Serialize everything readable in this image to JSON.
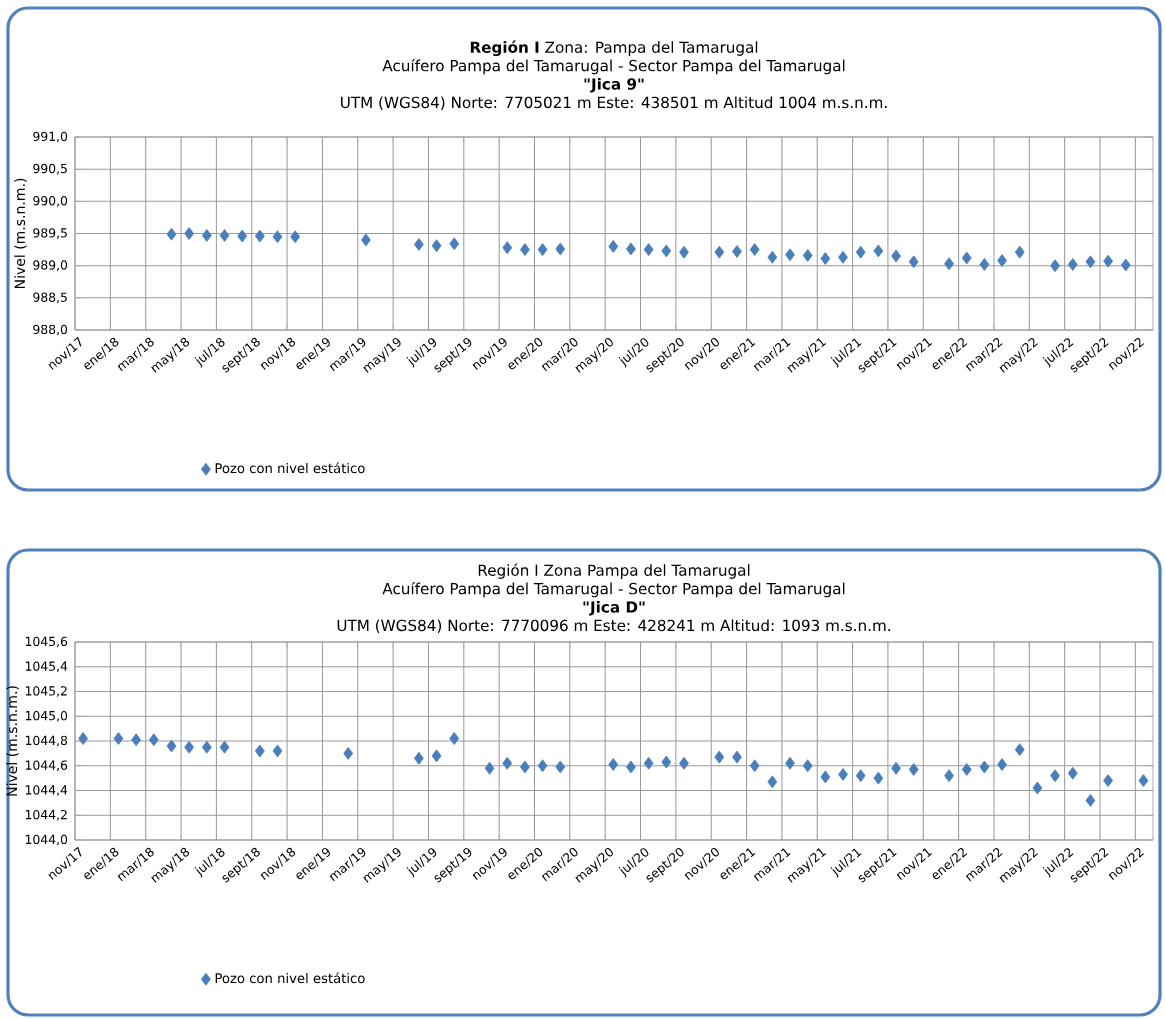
{
  "chart_data": [
    {
      "type": "scatter",
      "title": "**Región I** Zona: Pampa del Tamarugal",
      "subtitle": "Acuífero Pampa del Tamarugal - Sector Pampa del Tamarugal",
      "annotations": [
        "\"Jica 9\"",
        "UTM (WGS84) Norte: 7705021 m Este: 438501 m Altitud 1004 m.s.n.m."
      ],
      "ylabel": "Nivel (m.s.n.m.)",
      "series": [
        {
          "name": "Pozo con nivel estático",
          "color": "#4a7ebb",
          "x": [
            "2018-04-15",
            "2018-05-15",
            "2018-06-15",
            "2018-07-15",
            "2018-08-15",
            "2018-09-15",
            "2018-10-15",
            "2018-11-15",
            "2019-03-15",
            "2019-06-15",
            "2019-07-15",
            "2019-08-15",
            "2019-11-15",
            "2019-12-15",
            "2020-01-15",
            "2020-02-15",
            "2020-05-15",
            "2020-06-15",
            "2020-07-15",
            "2020-08-15",
            "2020-09-15",
            "2020-11-15",
            "2020-12-15",
            "2021-01-15",
            "2021-02-15",
            "2021-03-15",
            "2021-04-15",
            "2021-05-15",
            "2021-06-15",
            "2021-07-15",
            "2021-08-15",
            "2021-09-15",
            "2021-10-15",
            "2021-12-15",
            "2022-01-15",
            "2022-02-15",
            "2022-03-15",
            "2022-04-15",
            "2022-06-15",
            "2022-07-15",
            "2022-08-15",
            "2022-09-15",
            "2022-10-15"
          ],
          "values": [
            989.49,
            989.5,
            989.47,
            989.47,
            989.46,
            989.46,
            989.45,
            989.45,
            989.4,
            989.33,
            989.31,
            989.34,
            989.28,
            989.25,
            989.25,
            989.26,
            989.3,
            989.26,
            989.25,
            989.23,
            989.21,
            989.21,
            989.22,
            989.25,
            989.13,
            989.17,
            989.16,
            989.11,
            989.13,
            989.21,
            989.23,
            989.15,
            989.06,
            989.03,
            989.12,
            989.02,
            989.08,
            989.21,
            989.0,
            989.02,
            989.06,
            989.07,
            989.01
          ]
        }
      ],
      "xlim": [
        "2017-11",
        "2022-12"
      ],
      "xticks": [
        {
          "value": "2017-11",
          "label": "nov/17"
        },
        {
          "value": "2018-01",
          "label": "ene/18"
        },
        {
          "value": "2018-03",
          "label": "mar/18"
        },
        {
          "value": "2018-05",
          "label": "may/18"
        },
        {
          "value": "2018-07",
          "label": "jul/18"
        },
        {
          "value": "2018-09",
          "label": "sept/18"
        },
        {
          "value": "2018-11",
          "label": "nov/18"
        },
        {
          "value": "2019-01",
          "label": "ene/19"
        },
        {
          "value": "2019-03",
          "label": "mar/19"
        },
        {
          "value": "2019-05",
          "label": "may/19"
        },
        {
          "value": "2019-07",
          "label": "jul/19"
        },
        {
          "value": "2019-09",
          "label": "sept/19"
        },
        {
          "value": "2019-11",
          "label": "nov/19"
        },
        {
          "value": "2020-01",
          "label": "ene/20"
        },
        {
          "value": "2020-03",
          "label": "mar/20"
        },
        {
          "value": "2020-05",
          "label": "may/20"
        },
        {
          "value": "2020-07",
          "label": "jul/20"
        },
        {
          "value": "2020-09",
          "label": "sept/20"
        },
        {
          "value": "2020-11",
          "label": "nov/20"
        },
        {
          "value": "2021-01",
          "label": "ene/21"
        },
        {
          "value": "2021-03",
          "label": "mar/21"
        },
        {
          "value": "2021-05",
          "label": "may/21"
        },
        {
          "value": "2021-07",
          "label": "jul/21"
        },
        {
          "value": "2021-09",
          "label": "sept/21"
        },
        {
          "value": "2021-11",
          "label": "nov/21"
        },
        {
          "value": "2022-01",
          "label": "ene/22"
        },
        {
          "value": "2022-03",
          "label": "mar/22"
        },
        {
          "value": "2022-05",
          "label": "may/22"
        },
        {
          "value": "2022-07",
          "label": "jul/22"
        },
        {
          "value": "2022-09",
          "label": "sept/22"
        },
        {
          "value": "2022-11",
          "label": "nov/22"
        }
      ],
      "ylim": [
        988.0,
        991.0
      ],
      "yticks": [
        {
          "value": 988.0,
          "label": "988,0"
        },
        {
          "value": 988.5,
          "label": "988,5"
        },
        {
          "value": 989.0,
          "label": "989,0"
        },
        {
          "value": 989.5,
          "label": "989,5"
        },
        {
          "value": 990.0,
          "label": "990,0"
        },
        {
          "value": 990.5,
          "label": "990,5"
        },
        {
          "value": 991.0,
          "label": "991,0"
        }
      ],
      "grid": true,
      "legend": "bottom left",
      "marker": "diamond"
    },
    {
      "type": "scatter",
      "title": "Región I Zona Pampa del Tamarugal",
      "subtitle": "Acuífero Pampa del Tamarugal - Sector Pampa del Tamarugal",
      "annotations": [
        "\"Jica D\"",
        "UTM (WGS84) Norte: 7770096 m Este: 428241 m Altitud: 1093 m.s.n.m."
      ],
      "ylabel": "Nivel (m.s.n.m.)",
      "series": [
        {
          "name": "Pozo con nivel estático",
          "color": "#4a7ebb",
          "x": [
            "2017-11-15",
            "2018-01-15",
            "2018-02-15",
            "2018-03-15",
            "2018-04-15",
            "2018-05-15",
            "2018-06-15",
            "2018-07-15",
            "2018-09-15",
            "2018-10-15",
            "2019-02-15",
            "2019-06-15",
            "2019-07-15",
            "2019-08-15",
            "2019-10-15",
            "2019-11-15",
            "2019-12-15",
            "2020-01-15",
            "2020-02-15",
            "2020-05-15",
            "2020-06-15",
            "2020-07-15",
            "2020-08-15",
            "2020-09-15",
            "2020-11-15",
            "2020-12-15",
            "2021-01-15",
            "2021-02-15",
            "2021-03-15",
            "2021-04-15",
            "2021-05-15",
            "2021-06-15",
            "2021-07-15",
            "2021-08-15",
            "2021-09-15",
            "2021-10-15",
            "2021-12-15",
            "2022-01-15",
            "2022-02-15",
            "2022-03-15",
            "2022-04-15",
            "2022-05-15",
            "2022-06-15",
            "2022-07-15",
            "2022-08-15",
            "2022-09-15",
            "2022-11-15"
          ],
          "values": [
            1044.82,
            1044.82,
            1044.81,
            1044.81,
            1044.76,
            1044.75,
            1044.75,
            1044.75,
            1044.72,
            1044.72,
            1044.7,
            1044.66,
            1044.68,
            1044.82,
            1044.58,
            1044.62,
            1044.59,
            1044.6,
            1044.59,
            1044.61,
            1044.59,
            1044.62,
            1044.63,
            1044.62,
            1044.67,
            1044.67,
            1044.6,
            1044.47,
            1044.62,
            1044.6,
            1044.51,
            1044.53,
            1044.52,
            1044.5,
            1044.58,
            1044.57,
            1044.52,
            1044.57,
            1044.59,
            1044.61,
            1044.73,
            1044.42,
            1044.52,
            1044.54,
            1044.32,
            1044.48,
            1044.48
          ]
        }
      ],
      "xlim": [
        "2017-11",
        "2022-12"
      ],
      "xticks": [
        {
          "value": "2017-11",
          "label": "nov/17"
        },
        {
          "value": "2018-01",
          "label": "ene/18"
        },
        {
          "value": "2018-03",
          "label": "mar/18"
        },
        {
          "value": "2018-05",
          "label": "may/18"
        },
        {
          "value": "2018-07",
          "label": "jul/18"
        },
        {
          "value": "2018-09",
          "label": "sept/18"
        },
        {
          "value": "2018-11",
          "label": "nov/18"
        },
        {
          "value": "2019-01",
          "label": "ene/19"
        },
        {
          "value": "2019-03",
          "label": "mar/19"
        },
        {
          "value": "2019-05",
          "label": "may/19"
        },
        {
          "value": "2019-07",
          "label": "jul/19"
        },
        {
          "value": "2019-09",
          "label": "sept/19"
        },
        {
          "value": "2019-11",
          "label": "nov/19"
        },
        {
          "value": "2020-01",
          "label": "ene/20"
        },
        {
          "value": "2020-03",
          "label": "mar/20"
        },
        {
          "value": "2020-05",
          "label": "may/20"
        },
        {
          "value": "2020-07",
          "label": "jul/20"
        },
        {
          "value": "2020-09",
          "label": "sept/20"
        },
        {
          "value": "2020-11",
          "label": "nov/20"
        },
        {
          "value": "2021-01",
          "label": "ene/21"
        },
        {
          "value": "2021-03",
          "label": "mar/21"
        },
        {
          "value": "2021-05",
          "label": "may/21"
        },
        {
          "value": "2021-07",
          "label": "jul/21"
        },
        {
          "value": "2021-09",
          "label": "sept/21"
        },
        {
          "value": "2021-11",
          "label": "nov/21"
        },
        {
          "value": "2022-01",
          "label": "ene/22"
        },
        {
          "value": "2022-03",
          "label": "mar/22"
        },
        {
          "value": "2022-05",
          "label": "may/22"
        },
        {
          "value": "2022-07",
          "label": "jul/22"
        },
        {
          "value": "2022-09",
          "label": "sept/22"
        },
        {
          "value": "2022-11",
          "label": "nov/22"
        }
      ],
      "ylim": [
        1044.0,
        1045.6
      ],
      "yticks": [
        {
          "value": 1044.0,
          "label": "1044,0"
        },
        {
          "value": 1044.2,
          "label": "1044,2"
        },
        {
          "value": 1044.4,
          "label": "1044,4"
        },
        {
          "value": 1044.6,
          "label": "1044,6"
        },
        {
          "value": 1044.8,
          "label": "1044,8"
        },
        {
          "value": 1045.0,
          "label": "1045,0"
        },
        {
          "value": 1045.2,
          "label": "1045,2"
        },
        {
          "value": 1045.4,
          "label": "1045,4"
        },
        {
          "value": 1045.6,
          "label": "1045,6"
        }
      ],
      "grid": true,
      "legend": "bottom left",
      "marker": "diamond"
    }
  ]
}
